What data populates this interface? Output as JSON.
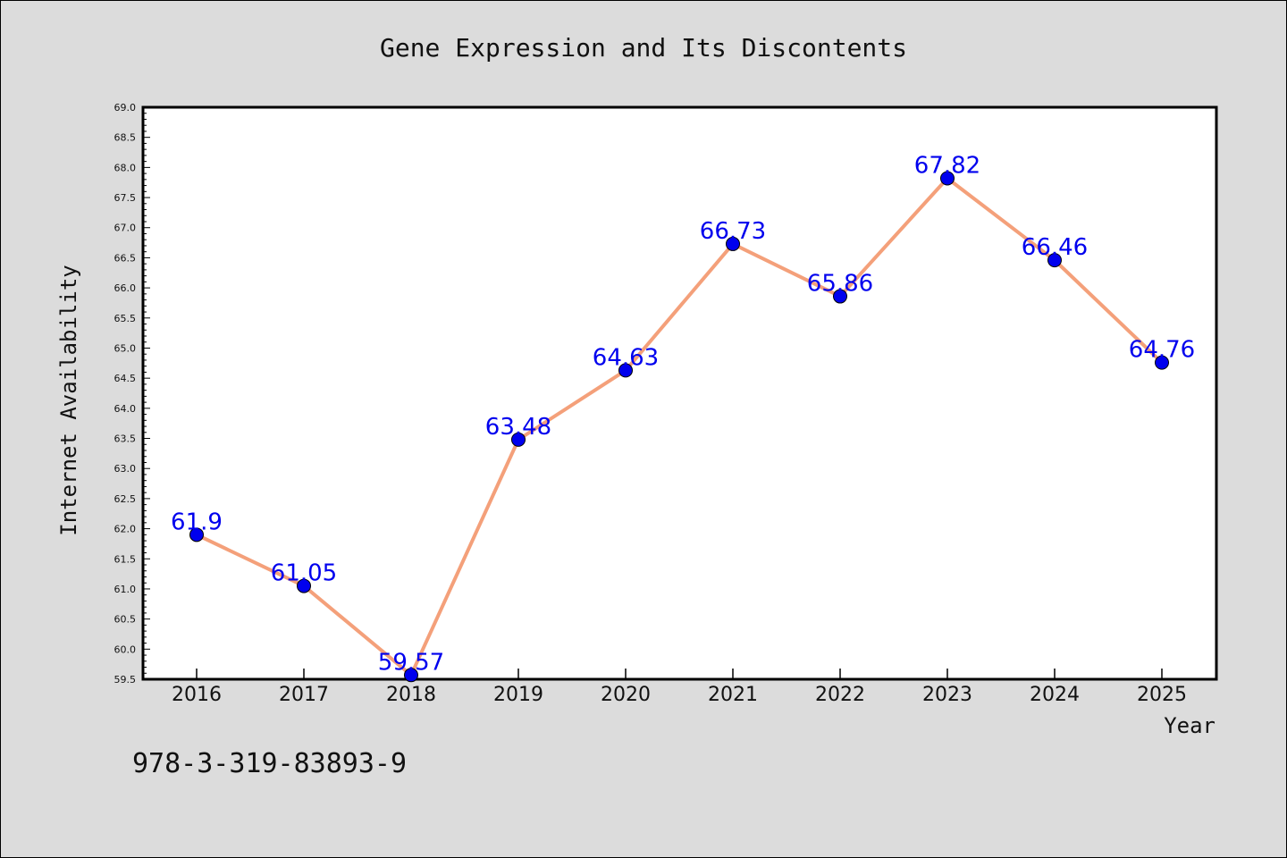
{
  "chart_data": {
    "type": "line",
    "title": "Gene Expression and Its Discontents",
    "xlabel": "Year",
    "ylabel": "Internet Availability",
    "categories": [
      "2016",
      "2017",
      "2018",
      "2019",
      "2020",
      "2021",
      "2022",
      "2023",
      "2024",
      "2025"
    ],
    "series": [
      {
        "values": [
          61.9,
          61.05,
          59.57,
          63.48,
          64.63,
          66.73,
          65.86,
          67.82,
          66.46,
          64.76
        ],
        "labels": [
          "61.9",
          "61.05",
          "59.57",
          "63.48",
          "64.63",
          "66.73",
          "65.86",
          "67.82",
          "66.46",
          "64.76"
        ],
        "line_color": "#f4a07a",
        "marker_color": "#0000ee"
      }
    ],
    "ylim": [
      59.5,
      69.0
    ],
    "yticks": [
      "59.5",
      "60.0",
      "60.5",
      "61.0",
      "61.5",
      "62.0",
      "62.5",
      "63.0",
      "63.5",
      "64.0",
      "64.5",
      "65.0",
      "65.5",
      "66.0",
      "66.5",
      "67.0",
      "67.5",
      "68.0",
      "68.5",
      "69.0"
    ],
    "grid": false,
    "legend": "none"
  },
  "footnote": "978-3-319-83893-9",
  "colors": {
    "background": "#dcdcdc",
    "plot_area": "#ffffff",
    "data_label": "#0000ee"
  }
}
